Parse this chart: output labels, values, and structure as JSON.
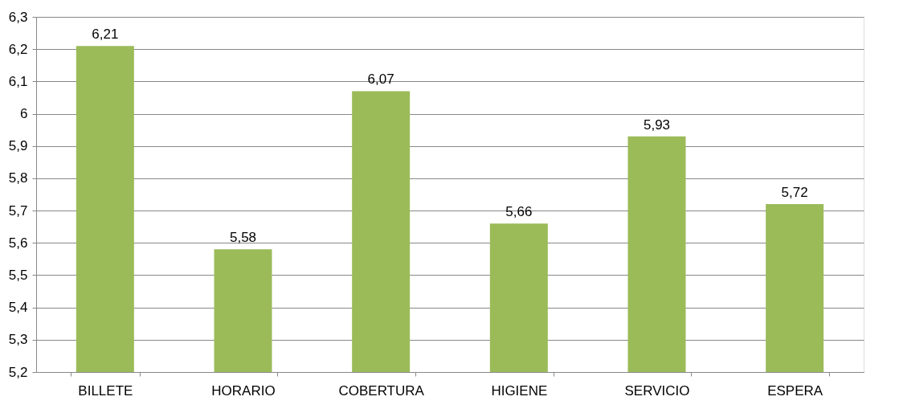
{
  "chart_data": {
    "type": "bar",
    "categories": [
      "BILLETE",
      "HORARIO",
      "COBERTURA",
      "HIGIENE",
      "SERVICIO",
      "ESPERA"
    ],
    "values": [
      6.21,
      5.58,
      6.07,
      5.66,
      5.93,
      5.72
    ],
    "value_labels": [
      "6,21",
      "5,58",
      "6,07",
      "5,66",
      "5,93",
      "5,72"
    ],
    "color": "#9bbb59",
    "ylim": [
      5.2,
      6.3
    ],
    "yticks": [
      {
        "value": 5.2,
        "label": "5,2"
      },
      {
        "value": 5.3,
        "label": "5,3"
      },
      {
        "value": 5.4,
        "label": "5,4"
      },
      {
        "value": 5.5,
        "label": "5,5"
      },
      {
        "value": 5.6,
        "label": "5,6"
      },
      {
        "value": 5.7,
        "label": "5,7"
      },
      {
        "value": 5.8,
        "label": "5,8"
      },
      {
        "value": 5.9,
        "label": "5,9"
      },
      6,
      {
        "value": 6.1,
        "label": "6,1"
      },
      {
        "value": 6.2,
        "label": "6,2"
      },
      {
        "value": 6.3,
        "label": "6,3"
      }
    ],
    "grid": "y"
  }
}
